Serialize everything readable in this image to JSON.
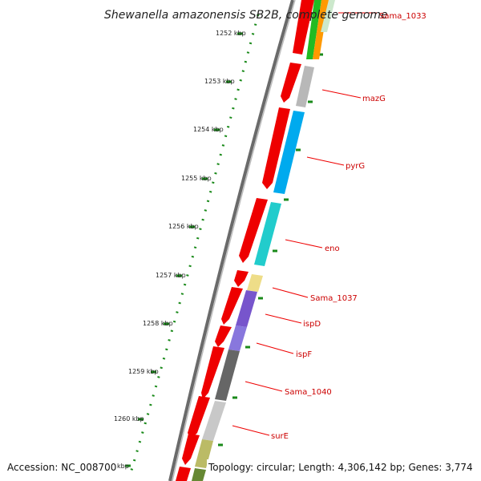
{
  "title": "Shewanella amazonensis SB2B, complete genome",
  "footer": {
    "accession": "Accession: NC_008700",
    "summary": "Topology: circular; Length: 4,306,142 bp; Genes: 3,774"
  },
  "scale_labels": [
    "1252 kbp",
    "1253 kbp",
    "1254 kbp",
    "1255 kbp",
    "1256 kbp",
    "1257 kbp",
    "1258 kbp",
    "1259 kbp",
    "1260 kbp",
    "kbp"
  ],
  "gene_labels": [
    "Sama_1033",
    "mazG",
    "pyrG",
    "eno",
    "Sama_1037",
    "ispD",
    "ispF",
    "Sama_1040",
    "surE"
  ],
  "colors": {
    "backbone": "#808080",
    "ticks": "#1a8a1a",
    "cds": "#ee0000",
    "label": "#cc0000",
    "mazG": "#b8b8b8",
    "pyrG": "#00aaee",
    "eno": "#22cccc",
    "Sama_1037": "#eedd88",
    "ispD": "#7755cc",
    "ispF": "#8877dd",
    "Sama_1040": "#666666",
    "surE": "#c8c8c8",
    "next_gene": "#bbbb66",
    "last_gene": "#668833",
    "top_green": "#22bb22",
    "top_orange": "#ff9900"
  }
}
